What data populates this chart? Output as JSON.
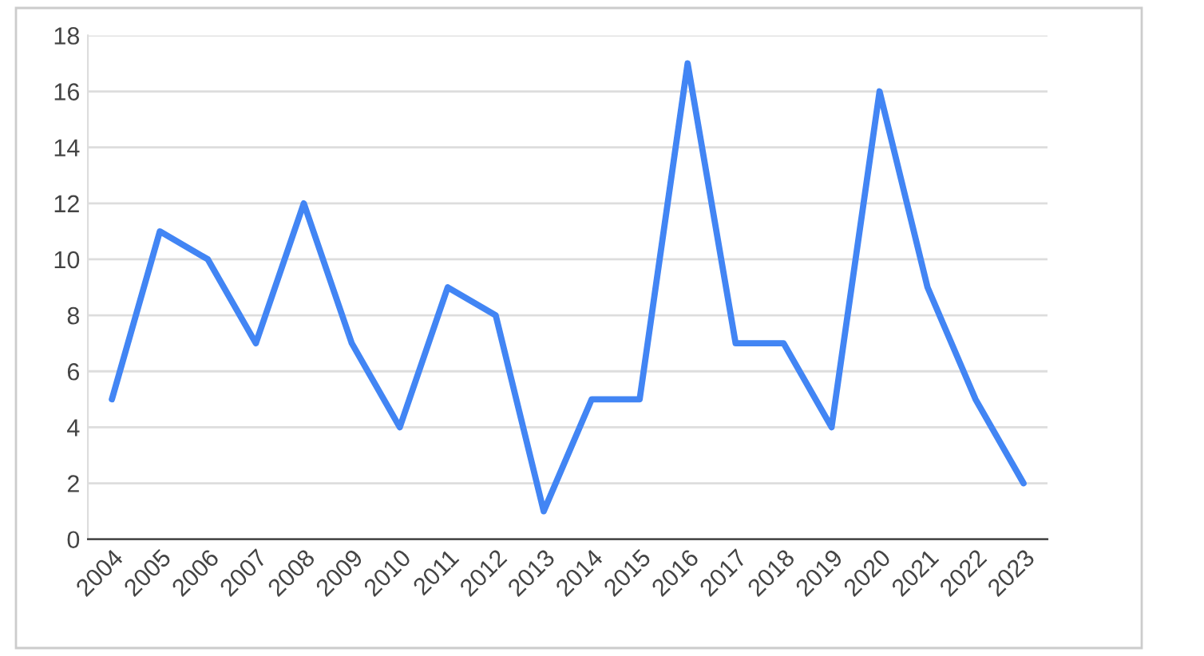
{
  "chart_data": {
    "type": "line",
    "categories": [
      "2004",
      "2005",
      "2006",
      "2007",
      "2008",
      "2009",
      "2010",
      "2011",
      "2012",
      "2013",
      "2014",
      "2015",
      "2016",
      "2017",
      "2018",
      "2019",
      "2020",
      "2021",
      "2022",
      "2023"
    ],
    "series": [
      {
        "color": "#4285f4",
        "values": [
          5,
          11,
          10,
          7,
          12,
          7,
          4,
          9,
          8,
          1,
          5,
          5,
          17,
          7,
          7,
          4,
          16,
          9,
          5,
          2
        ]
      }
    ],
    "ylim": [
      0,
      18
    ],
    "yticks": [
      0,
      2,
      4,
      6,
      8,
      10,
      12,
      14,
      16,
      18
    ],
    "grid": "y",
    "marker": "none",
    "line_style": "solid"
  }
}
